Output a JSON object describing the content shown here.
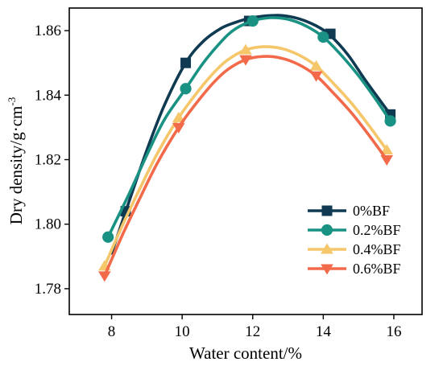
{
  "chart_data": {
    "type": "line",
    "xlabel": "Water content/%",
    "ylabel_main": "Dry density/g·cm",
    "ylabel_sup": "-3",
    "xlim": [
      6.8,
      16.8
    ],
    "ylim": [
      1.772,
      1.867
    ],
    "xticks": [
      8,
      10,
      12,
      14,
      16
    ],
    "xtick_labels": [
      "8",
      "10",
      "12",
      "14",
      "16"
    ],
    "yticks": [
      1.78,
      1.8,
      1.82,
      1.84,
      1.86
    ],
    "ytick_labels": [
      "1.78",
      "1.80",
      "1.82",
      "1.84",
      "1.86"
    ],
    "legend_position": "lower-right",
    "series": [
      {
        "name": "0%BF",
        "color": "#0f3a52",
        "marker": "square",
        "x": [
          8.4,
          10.1,
          11.9,
          14.2,
          15.9
        ],
        "y": [
          1.804,
          1.85,
          1.863,
          1.859,
          1.834
        ],
        "curve_x": [
          8.0,
          8.4,
          9.0,
          9.5,
          10.1,
          10.6,
          11.1,
          11.5,
          11.9,
          12.3,
          12.8,
          13.3,
          13.8,
          14.2,
          14.7,
          15.2,
          15.9
        ],
        "curve_y": [
          1.791,
          1.804,
          1.823,
          1.837,
          1.85,
          1.8567,
          1.8607,
          1.8625,
          1.8638,
          1.8645,
          1.8647,
          1.8637,
          1.8615,
          1.8585,
          1.8525,
          1.8445,
          1.834
        ]
      },
      {
        "name": "0.2%BF",
        "color": "#1a9283",
        "marker": "circle",
        "x": [
          7.9,
          10.1,
          12.0,
          14.0,
          15.9
        ],
        "y": [
          1.796,
          1.842,
          1.863,
          1.858,
          1.832
        ],
        "curve_x": [
          7.9,
          8.5,
          9.0,
          9.5,
          10.1,
          10.6,
          11.1,
          11.5,
          12.0,
          12.5,
          13.0,
          13.5,
          14.0,
          14.5,
          15.0,
          15.5,
          15.9
        ],
        "curve_y": [
          1.796,
          1.8095,
          1.8215,
          1.8325,
          1.842,
          1.85,
          1.8565,
          1.8605,
          1.863,
          1.864,
          1.8635,
          1.8615,
          1.858,
          1.8525,
          1.846,
          1.8385,
          1.832
        ]
      },
      {
        "name": "0.4%BF",
        "color": "#f5c66a",
        "marker": "triangle-up",
        "x": [
          7.8,
          9.9,
          11.8,
          13.8,
          15.8
        ],
        "y": [
          1.787,
          1.833,
          1.854,
          1.849,
          1.823
        ],
        "curve_x": [
          7.8,
          8.3,
          8.8,
          9.3,
          9.9,
          10.4,
          10.9,
          11.3,
          11.8,
          12.3,
          12.8,
          13.3,
          13.8,
          14.3,
          14.8,
          15.3,
          15.8
        ],
        "curve_y": [
          1.787,
          1.7995,
          1.811,
          1.822,
          1.833,
          1.8405,
          1.847,
          1.851,
          1.854,
          1.855,
          1.8545,
          1.8525,
          1.849,
          1.8435,
          1.8375,
          1.8305,
          1.823
        ]
      },
      {
        "name": "0.6%BF",
        "color": "#f26a4a",
        "marker": "triangle-down",
        "x": [
          7.8,
          9.9,
          11.8,
          13.8,
          15.8
        ],
        "y": [
          1.784,
          1.83,
          1.851,
          1.846,
          1.82
        ],
        "curve_x": [
          7.8,
          8.3,
          8.8,
          9.3,
          9.9,
          10.4,
          10.9,
          11.3,
          11.8,
          12.3,
          12.8,
          13.3,
          13.8,
          14.3,
          14.8,
          15.3,
          15.8
        ],
        "curve_y": [
          1.784,
          1.7965,
          1.808,
          1.819,
          1.83,
          1.8375,
          1.844,
          1.848,
          1.851,
          1.852,
          1.8515,
          1.8495,
          1.846,
          1.8405,
          1.8345,
          1.8275,
          1.82
        ]
      }
    ]
  }
}
